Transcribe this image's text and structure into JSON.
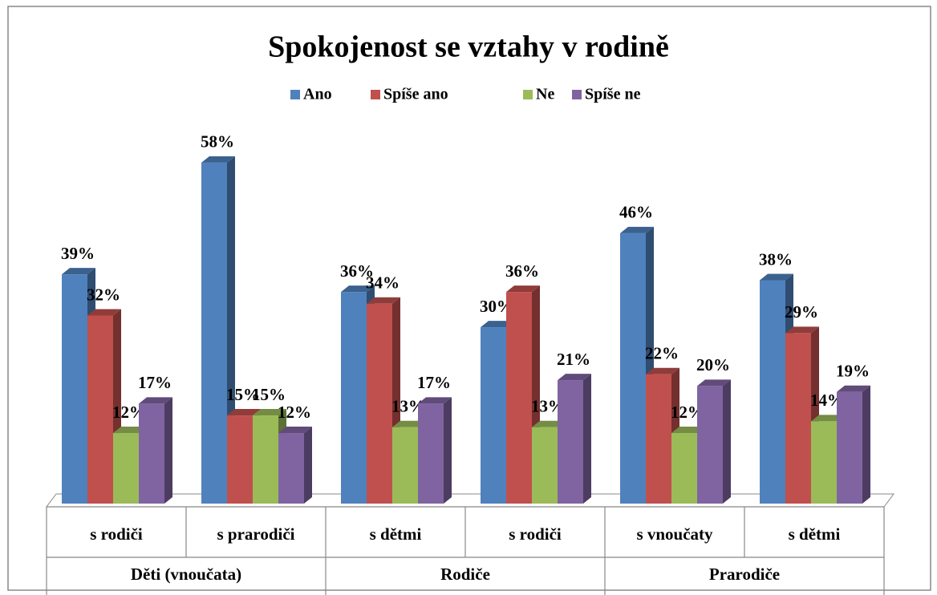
{
  "chart_data": {
    "type": "bar3d",
    "title": "Spokojenost se vztahy v rodině",
    "categories": [
      "s rodiči",
      "s prarodiči",
      "s dětmi",
      "s rodiči",
      "s vnoučaty",
      "s dětmi"
    ],
    "groups": [
      "Děti (vnoučata)",
      "Rodiče",
      "Prarodiče"
    ],
    "legend": "top",
    "series": [
      {
        "name": "Ano",
        "color": "#4f81bd",
        "values": [
          39,
          58,
          36,
          30,
          46,
          38
        ],
        "value_labels": [
          "39%",
          "58%",
          "36%",
          "30%",
          "46%",
          "38%"
        ]
      },
      {
        "name": "Spíše ano",
        "color": "#c0504d",
        "values": [
          32,
          15,
          34,
          36,
          22,
          29
        ],
        "value_labels": [
          "32%",
          "15%",
          "34%",
          "36%",
          "22%",
          "29%"
        ]
      },
      {
        "name": "Ne",
        "color": "#9bbb59",
        "values": [
          12,
          15,
          13,
          13,
          12,
          14
        ],
        "value_labels": [
          "12%",
          "15%",
          "13%",
          "13%",
          "12%",
          "14%"
        ]
      },
      {
        "name": "Spíše ne",
        "color": "#8064a2",
        "values": [
          17,
          12,
          17,
          21,
          20,
          19
        ],
        "value_labels": [
          "17%",
          "12%",
          "17%",
          "21%",
          "20%",
          "19%"
        ]
      }
    ]
  }
}
